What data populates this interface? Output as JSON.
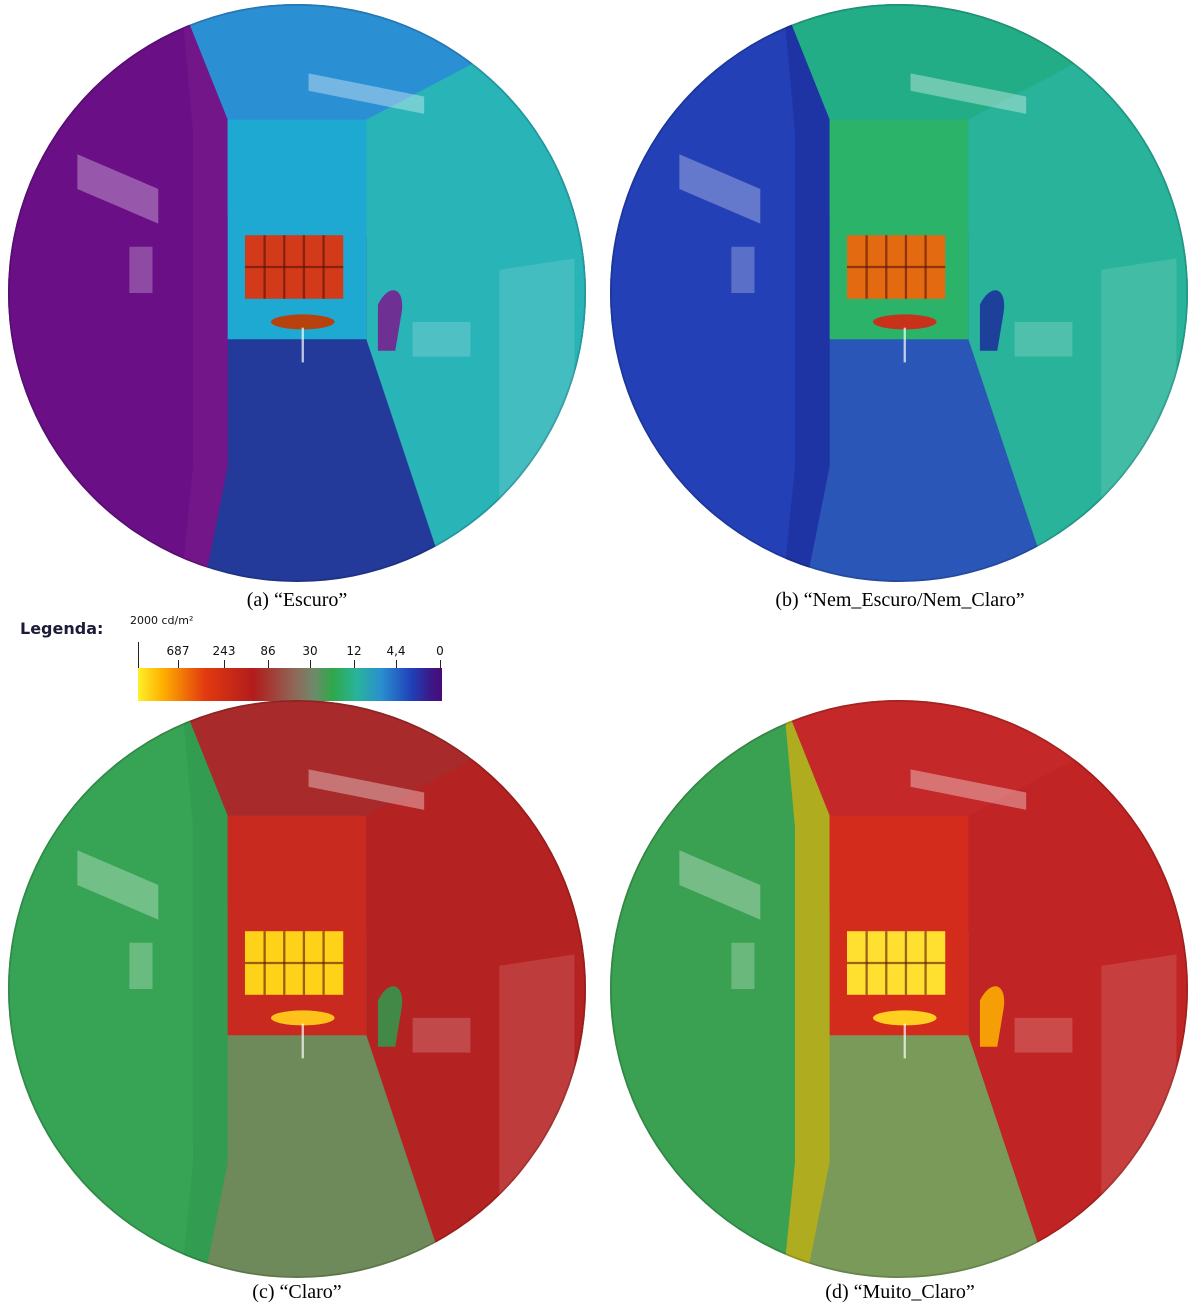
{
  "captions": {
    "a": "(a) “Escuro”",
    "b": "(b) “Nem_Escuro/Nem_Claro”",
    "c": "(c) “Claro”",
    "d": "(d) “Muito_Claro”"
  },
  "legend": {
    "label": "Legenda:",
    "unit": "2000 cd/m²",
    "ticks": [
      "687",
      "243",
      "86",
      "30",
      "12",
      "4,4",
      "0"
    ]
  },
  "palettes": {
    "a": {
      "left_wall": "#6a0f86",
      "ceiling": "#2b8fd3",
      "back_wall": "#1da9d1",
      "right_wall": "#29b4b8",
      "floor": "#243a9a",
      "window": "#d23a1a",
      "table": "#b8420e",
      "accent": "#7a1a8c"
    },
    "b": {
      "left_wall": "#2340b6",
      "ceiling": "#23ad86",
      "back_wall": "#2bb36a",
      "right_wall": "#29b39a",
      "floor": "#2a56b8",
      "window": "#e46a12",
      "table": "#c8321a",
      "accent": "#1b2d9a"
    },
    "c": {
      "left_wall": "#37a455",
      "ceiling": "#a82a2a",
      "back_wall": "#c82a20",
      "right_wall": "#b52222",
      "floor": "#6e8a5a",
      "window": "#ffd21a",
      "table": "#ffc21a",
      "accent": "#2e9a4c"
    },
    "d": {
      "left_wall": "#3aa052",
      "ceiling": "#c42828",
      "back_wall": "#d42c1c",
      "right_wall": "#c02424",
      "floor": "#7a9a5a",
      "window": "#ffe030",
      "table": "#ffd020",
      "accent": "#ffb400"
    }
  }
}
